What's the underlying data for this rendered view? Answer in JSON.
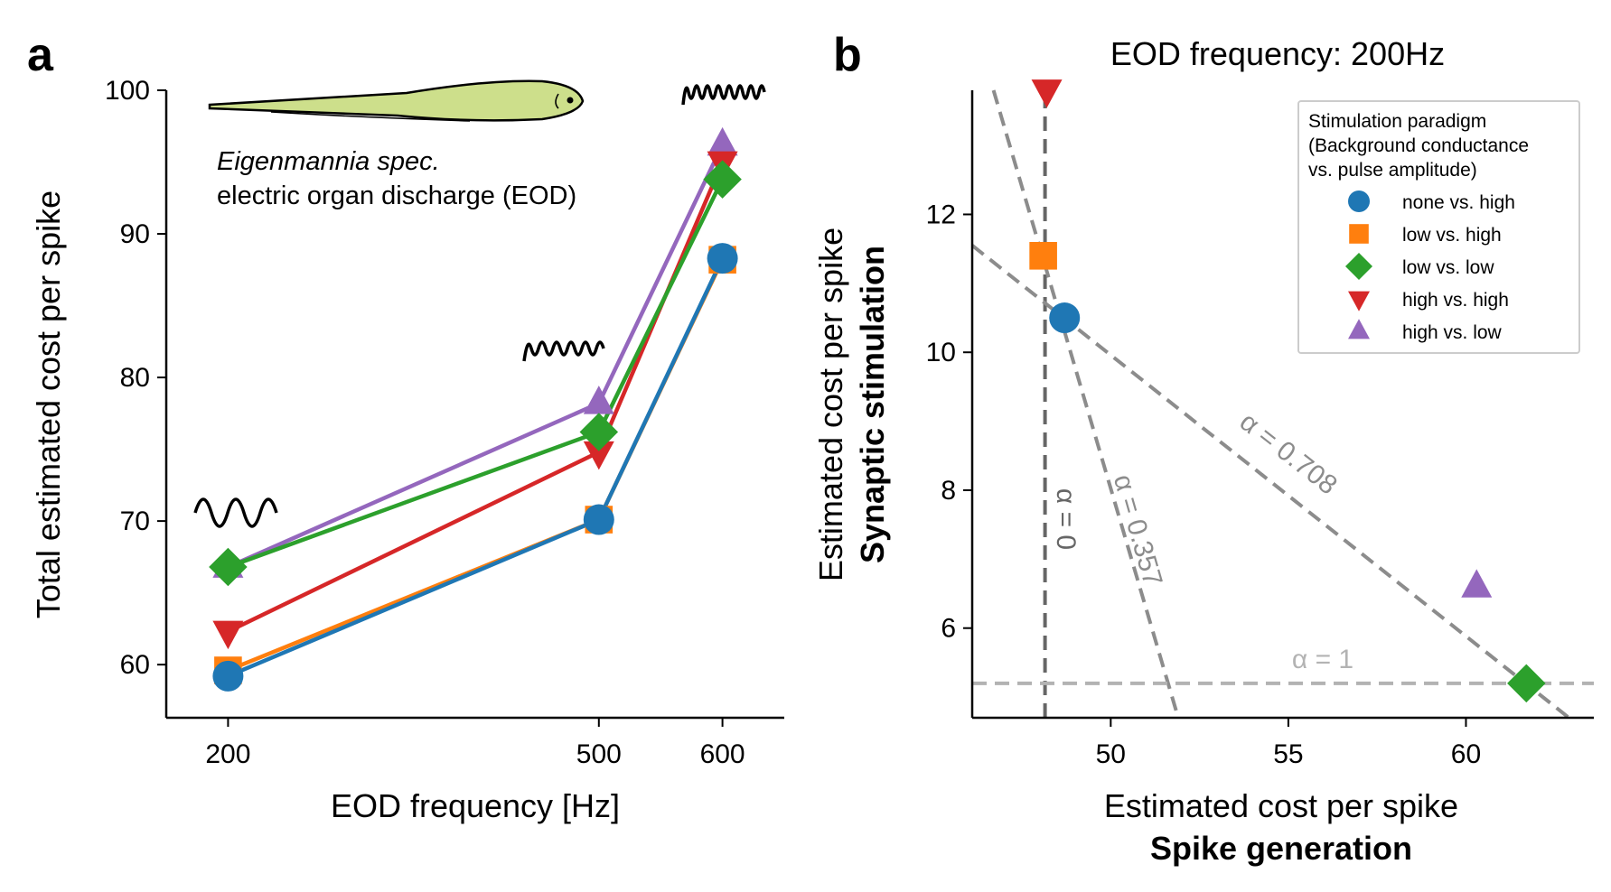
{
  "colors": {
    "none_high": "#1f77b4",
    "low_high": "#ff7f0e",
    "low_low": "#2ca02c",
    "high_high": "#d62728",
    "high_low": "#9467bd",
    "fish_fill": "#cddf8b",
    "dashed_dark": "#666666",
    "dashed_mid": "#8c8c8c",
    "dashed_light": "#b3b3b3"
  },
  "panel_a": {
    "label": "a",
    "fish_species": "Eigenmannia spec.",
    "fish_caption": "electric organ discharge (EOD)"
  },
  "panel_b": {
    "label": "b"
  },
  "chart_data": [
    {
      "type": "line",
      "xlabel": "EOD frequency [Hz]",
      "ylabel": "Total estimated cost per spike",
      "x": [
        200,
        500,
        600
      ],
      "xlim": [
        150,
        650
      ],
      "ylim": [
        56.3,
        100
      ],
      "xticks": [
        "200",
        "500",
        "600"
      ],
      "yticks": [
        "60",
        "70",
        "80",
        "90",
        "100"
      ],
      "series": [
        {
          "name": "high vs. low",
          "key": "high_low",
          "marker": "triangle-up",
          "values": [
            66.8,
            78.2,
            96.2
          ]
        },
        {
          "name": "high vs. high",
          "key": "high_high",
          "marker": "triangle-down",
          "values": [
            62.3,
            74.8,
            95.0
          ]
        },
        {
          "name": "low vs. low",
          "key": "low_low",
          "marker": "diamond",
          "values": [
            66.8,
            76.2,
            93.8
          ]
        },
        {
          "name": "low vs. high",
          "key": "low_high",
          "marker": "square",
          "values": [
            59.6,
            70.1,
            88.2
          ]
        },
        {
          "name": "none vs. high",
          "key": "none_high",
          "marker": "circle",
          "values": [
            59.2,
            70.1,
            88.3
          ]
        }
      ]
    },
    {
      "type": "scatter",
      "title": "EOD frequency: 200Hz",
      "xlabel": "Estimated cost per spike",
      "xlabel_bold": "Spike generation",
      "ylabel": "Estimated cost per spike",
      "ylabel_bold": "Synaptic stimulation",
      "xlim": [
        46.1,
        63.6
      ],
      "ylim": [
        4.7,
        13.8
      ],
      "xticks": [
        "50",
        "55",
        "60"
      ],
      "yticks": [
        "6",
        "8",
        "10",
        "12"
      ],
      "legend_title": "Stimulation paradigm\n(Background conductance\nvs. pulse amplitude)",
      "legend_location": "top-right",
      "points": [
        {
          "name": "none vs. high",
          "key": "none_high",
          "marker": "circle",
          "x": 48.7,
          "y": 10.5
        },
        {
          "name": "low vs. high",
          "key": "low_high",
          "marker": "square",
          "x": 48.1,
          "y": 11.4
        },
        {
          "name": "low vs. low",
          "key": "low_low",
          "marker": "diamond",
          "x": 61.7,
          "y": 5.2
        },
        {
          "name": "high vs. high",
          "key": "high_high",
          "marker": "triangle-down",
          "x": 48.2,
          "y": 13.8
        },
        {
          "name": "high vs. low",
          "key": "high_low",
          "marker": "triangle-up",
          "x": 60.3,
          "y": 6.6
        }
      ],
      "alpha_lines": [
        {
          "label": "α = 0",
          "style": "dashed_dark",
          "p1": [
            48.15,
            4.7
          ],
          "p2": [
            48.15,
            13.8
          ]
        },
        {
          "label": "α = 0.357",
          "style": "dashed_mid",
          "p1": [
            46.7,
            13.8
          ],
          "p2": [
            51.9,
            4.7
          ]
        },
        {
          "label": "α = 0.708",
          "style": "dashed_mid",
          "p1": [
            46.1,
            11.55
          ],
          "p2": [
            62.9,
            4.7
          ]
        },
        {
          "label": "α = 1",
          "style": "dashed_light",
          "p1": [
            46.1,
            5.2
          ],
          "p2": [
            63.6,
            5.2
          ]
        }
      ]
    }
  ]
}
